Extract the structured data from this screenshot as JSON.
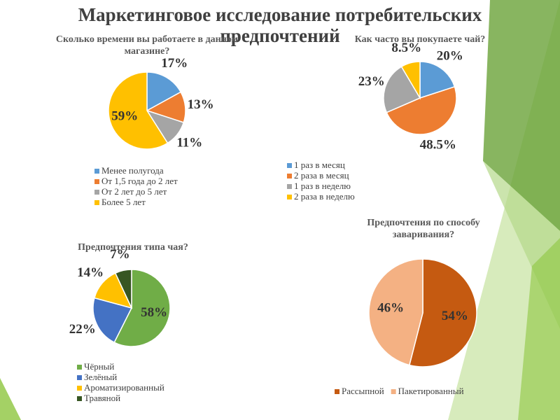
{
  "title": "Маркетинговое исследование потребительских предпочтений",
  "chart_data": [
    {
      "type": "pie",
      "title": "Сколько времени вы работаете в данном магазине?",
      "categories": [
        "Менее полугода",
        "От 1,5 года до 2 лет",
        "От 2 лет до 5 лет",
        "Более 5 лет"
      ],
      "values": [
        17,
        13,
        11,
        59
      ],
      "value_labels": [
        "17%",
        "13%",
        "11%",
        "59%"
      ],
      "colors": [
        "#5b9bd5",
        "#ed7d31",
        "#a5a5a5",
        "#ffc000"
      ],
      "legend": "bottom"
    },
    {
      "type": "pie",
      "title": "Как часто вы покупаете чай?",
      "categories": [
        "1 раз в месяц",
        "2 раза в месяц",
        "1 раз в неделю",
        "2 раза в неделю"
      ],
      "values": [
        20,
        48.5,
        23,
        8.5
      ],
      "value_labels": [
        "20%",
        "48.5%",
        "23%",
        "8.5%"
      ],
      "colors": [
        "#5b9bd5",
        "#ed7d31",
        "#a5a5a5",
        "#ffc000"
      ],
      "legend": "bottom"
    },
    {
      "type": "pie",
      "title": "Предпочтения типа чая?",
      "categories": [
        "Чёрный",
        "Зелёный",
        "Ароматизированный",
        "Травяной"
      ],
      "values": [
        58,
        22,
        14,
        7
      ],
      "value_labels": [
        "58%",
        "22%",
        "14%",
        "7%"
      ],
      "colors": [
        "#70ad47",
        "#4472c4",
        "#ffc000",
        "#375623"
      ],
      "legend": "bottom"
    },
    {
      "type": "pie",
      "title": "Предпочтения по способу заваривания?",
      "categories": [
        "Рассыпной",
        "Пакетированный"
      ],
      "values": [
        54,
        46
      ],
      "value_labels": [
        "54%",
        "46%"
      ],
      "colors": [
        "#c55a11",
        "#f4b183"
      ],
      "legend": "bottom"
    }
  ]
}
